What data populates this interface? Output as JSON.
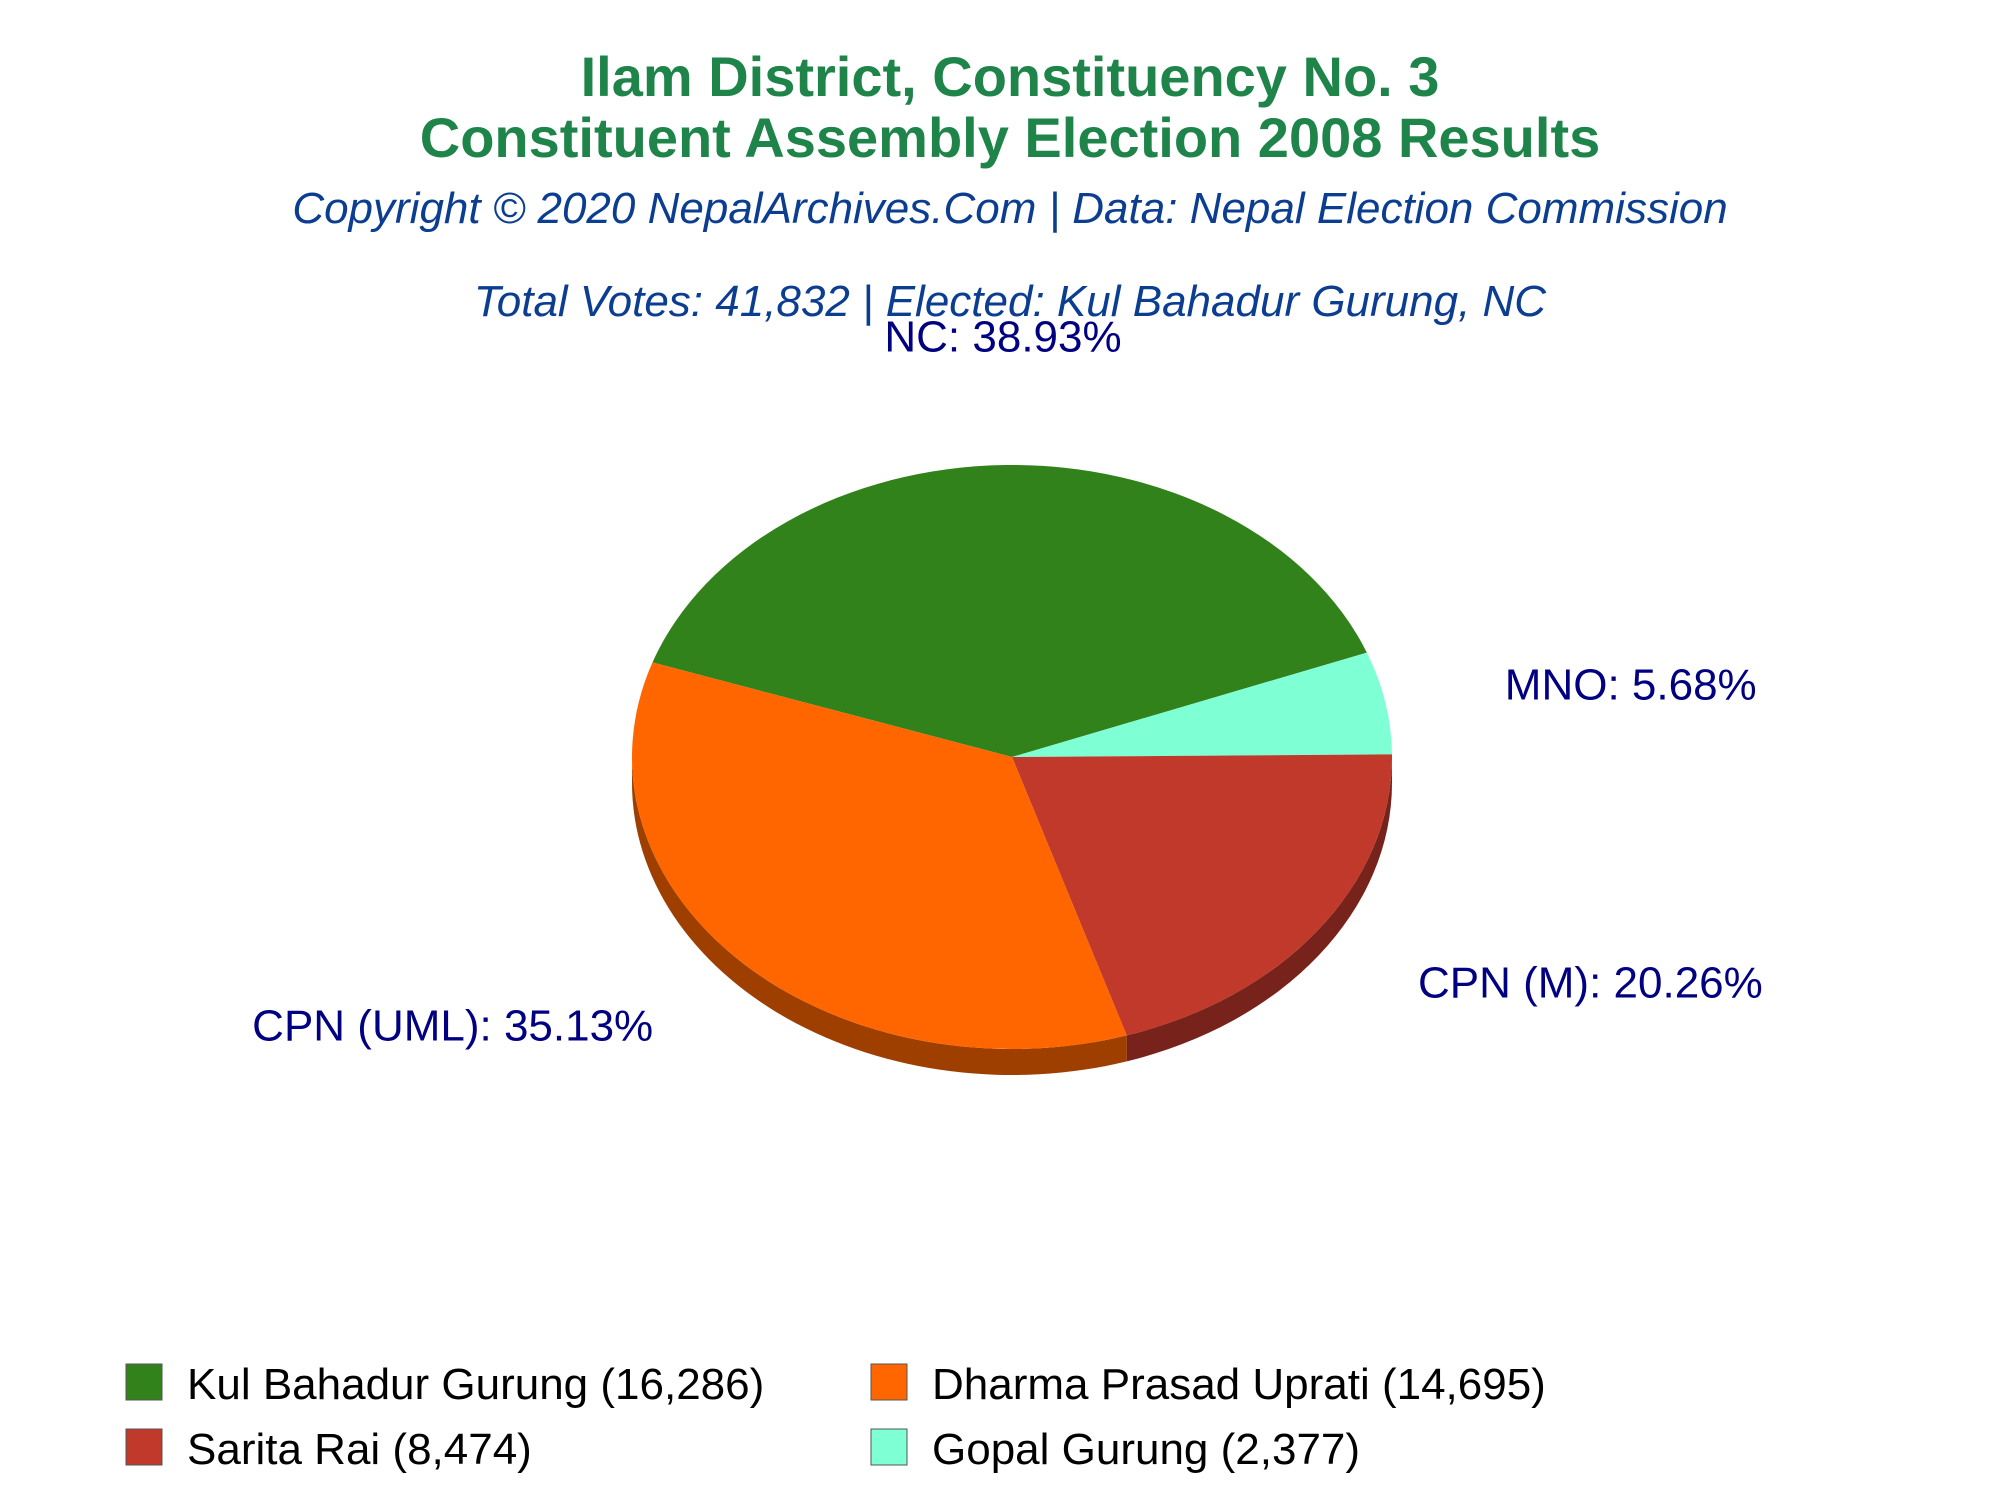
{
  "chart_data": {
    "type": "pie",
    "title": "Ilam District, Constituency No. 3",
    "title_line2": "Constituent Assembly Election 2008 Results",
    "subtitle": "Copyright © 2020 NepalArchives.Com | Data: Nepal Election Commission",
    "summary": "Total Votes: 41,832 | Elected: Kul Bahadur Gurung, NC",
    "slices": [
      {
        "party": "NC",
        "label": "NC: 38.93%",
        "percent": 38.93,
        "candidate": "Kul Bahadur Gurung",
        "votes": 16286,
        "legend": "Kul Bahadur Gurung (16,286)",
        "color": "#31821a"
      },
      {
        "party": "MNO",
        "label": "MNO: 5.68%",
        "percent": 5.68,
        "candidate": "Gopal Gurung",
        "votes": 2377,
        "legend": "Gopal Gurung (2,377)",
        "color": "#7fffd4"
      },
      {
        "party": "CPN (M)",
        "label": "CPN (M): 20.26%",
        "percent": 20.26,
        "candidate": "Sarita Rai",
        "votes": 8474,
        "legend": "Sarita Rai (8,474)",
        "color": "#c0392b"
      },
      {
        "party": "CPN (UML)",
        "label": "CPN (UML): 35.13%",
        "percent": 35.13,
        "candidate": "Dharma Prasad Uprati",
        "votes": 14695,
        "legend": "Dharma Prasad Uprati (14,695)",
        "color": "#ff6600"
      }
    ],
    "legend_order": [
      0,
      3,
      2,
      1
    ],
    "legend_position": "bottom"
  }
}
